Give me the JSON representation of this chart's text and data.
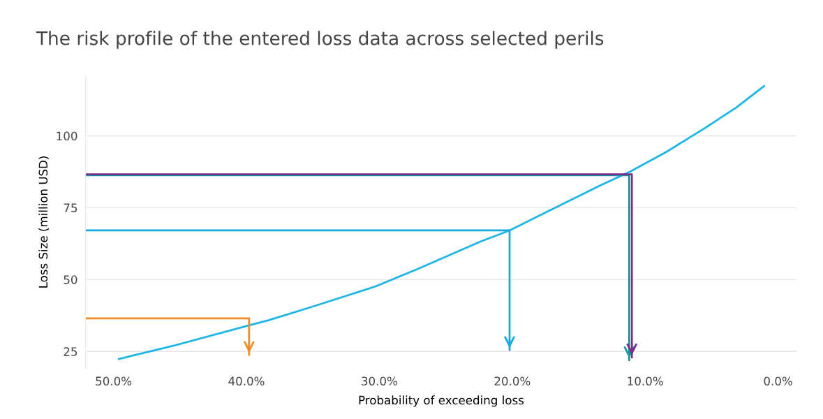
{
  "chart_data": {
    "type": "line",
    "title": "The risk profile of the entered loss data across selected perils",
    "xlabel": "Probability of exceeding loss",
    "ylabel": "Loss Size (million USD)",
    "xlim": [
      52.1,
      -1.4
    ],
    "ylim": [
      19,
      121
    ],
    "xticks": [
      {
        "value": 50,
        "label": "50.0%"
      },
      {
        "value": 40,
        "label": "40.0%"
      },
      {
        "value": 30,
        "label": "30.0%"
      },
      {
        "value": 20,
        "label": "20.0%"
      },
      {
        "value": 10,
        "label": "10.0%"
      },
      {
        "value": 0,
        "label": "0.0%"
      }
    ],
    "yticks": [
      25,
      50,
      75,
      100
    ],
    "grid": "y",
    "legend": false,
    "marker": "none",
    "line_style": "solid",
    "series": [
      {
        "color": "#1cb5e8",
        "x": [
          49.6,
          45.4,
          39.8,
          38.3,
          35.3,
          30.3,
          27.0,
          22.4,
          20.2,
          16.8,
          13.4,
          11.1,
          8.4,
          5.5,
          3.1,
          1.05
        ],
        "values": [
          22.4,
          27.1,
          34.1,
          35.9,
          40.2,
          47.6,
          53.9,
          63.2,
          67.1,
          74.9,
          82.7,
          87.6,
          94.4,
          102.7,
          110.0,
          117.3
        ]
      },
      {
        "color": "#f28c28",
        "x": [
          52.1,
          39.8,
          39.8
        ],
        "values": [
          36.5,
          36.5,
          23.8
        ]
      },
      {
        "color": "#1aa9df",
        "x": [
          52.1,
          20.2,
          20.2
        ],
        "values": [
          67.1,
          67.1,
          25.5
        ]
      },
      {
        "color": "#17959b",
        "x": [
          52.1,
          11.2,
          11.2
        ],
        "values": [
          86.3,
          86.3,
          22.0
        ]
      },
      {
        "color": "#7b2c8f",
        "x": [
          52.1,
          11.0,
          11.0
        ],
        "values": [
          86.6,
          86.6,
          23.0
        ]
      }
    ]
  }
}
